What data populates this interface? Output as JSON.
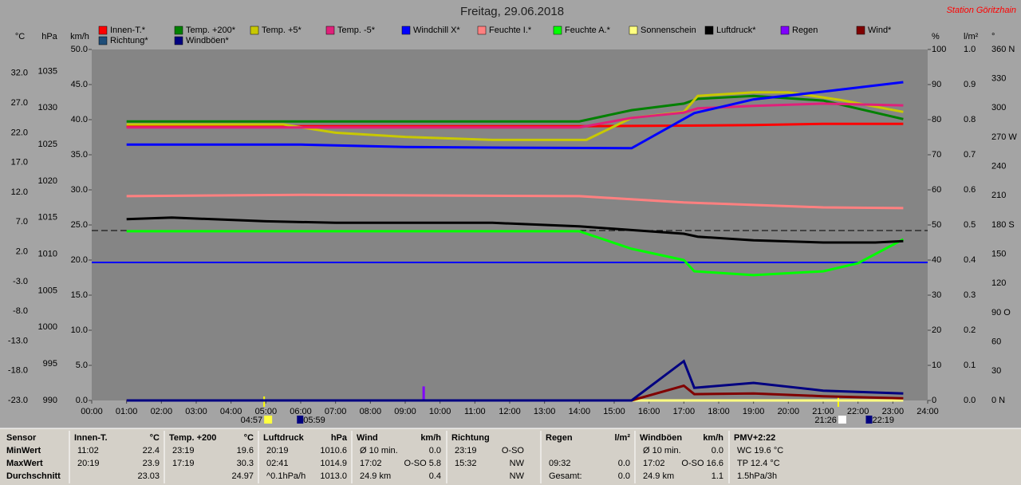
{
  "chart_data": {
    "type": "line",
    "title": "Freitag, 29.06.2018",
    "subtitle": "Station Göritzhain",
    "xlim": [
      0,
      24
    ],
    "xticks": [
      {
        "value": 0,
        "label": "00:00"
      },
      {
        "value": 1,
        "label": "01:00"
      },
      {
        "value": 2,
        "label": "02:00"
      },
      {
        "value": 3,
        "label": "03:00"
      },
      {
        "value": 4,
        "label": "04:00"
      },
      {
        "value": 5,
        "label": "05:00"
      },
      {
        "value": 6,
        "label": "06:00"
      },
      {
        "value": 7,
        "label": "07:00"
      },
      {
        "value": 8,
        "label": "08:00"
      },
      {
        "value": 9,
        "label": "09:00"
      },
      {
        "value": 10,
        "label": "10:00"
      },
      {
        "value": 11,
        "label": "11:00"
      },
      {
        "value": 12,
        "label": "12:00"
      },
      {
        "value": 13,
        "label": "13:00"
      },
      {
        "value": 14,
        "label": "14:00"
      },
      {
        "value": 15,
        "label": "15:00"
      },
      {
        "value": 16,
        "label": "16:00"
      },
      {
        "value": 17,
        "label": "17:00"
      },
      {
        "value": 18,
        "label": "18:00"
      },
      {
        "value": 19,
        "label": "19:00"
      },
      {
        "value": 20,
        "label": "20:00"
      },
      {
        "value": 21,
        "label": "21:00"
      },
      {
        "value": 22,
        "label": "22:00"
      },
      {
        "value": 23,
        "label": "23:00"
      },
      {
        "value": 24,
        "label": "24:00"
      }
    ],
    "annotations": [
      "04:57",
      "05:59",
      "21:26",
      "22:19"
    ],
    "axes": [
      {
        "unit": "°C",
        "side": "left",
        "color": "#c00000",
        "lim": [
          -23,
          36
        ],
        "ticks": [
          {
            "value": 32,
            "label": "32.0"
          },
          {
            "value": 27,
            "label": "27.0"
          },
          {
            "value": 22,
            "label": "22.0"
          },
          {
            "value": 17,
            "label": "17.0"
          },
          {
            "value": 12,
            "label": "12.0"
          },
          {
            "value": 7,
            "label": "7.0"
          },
          {
            "value": 2,
            "label": "2.0"
          },
          {
            "value": -3,
            "label": "-3.0"
          },
          {
            "value": -8,
            "label": "-8.0"
          },
          {
            "value": -13,
            "label": "-13.0"
          },
          {
            "value": -18,
            "label": "-18.0"
          },
          {
            "value": -23,
            "label": "-23.0"
          }
        ]
      },
      {
        "unit": "hPa",
        "side": "left",
        "color": "#000000",
        "lim": [
          990,
          1038
        ],
        "ticks": [
          1035,
          1030,
          1025,
          1020,
          1015,
          1010,
          1005,
          1000,
          995,
          990
        ]
      },
      {
        "unit": "km/h",
        "side": "left",
        "color": "#800000",
        "lim": [
          0,
          50
        ],
        "ticks": [
          {
            "value": 50,
            "label": "50.0"
          },
          {
            "value": 45,
            "label": "45.0"
          },
          {
            "value": 40,
            "label": "40.0"
          },
          {
            "value": 35,
            "label": "35.0"
          },
          {
            "value": 30,
            "label": "30.0"
          },
          {
            "value": 25,
            "label": "25.0"
          },
          {
            "value": 20,
            "label": "20.0"
          },
          {
            "value": 15,
            "label": "15.0"
          },
          {
            "value": 10,
            "label": "10.0"
          },
          {
            "value": 5,
            "label": "5.0"
          },
          {
            "value": 0,
            "label": "0.0"
          }
        ]
      },
      {
        "unit": "%",
        "side": "right",
        "color": "#e05070",
        "lim": [
          0,
          100
        ],
        "ticks": [
          100,
          90,
          80,
          70,
          60,
          50,
          40,
          30,
          20,
          10,
          0
        ]
      },
      {
        "unit": "l/m²",
        "side": "right",
        "color": "#8000ff",
        "lim": [
          0,
          1
        ],
        "ticks": [
          {
            "value": 1,
            "label": "1.0"
          },
          0.9,
          0.8,
          0.7,
          0.6,
          0.5,
          0.4,
          0.3,
          0.2,
          0.1,
          {
            "value": 0,
            "label": "0.0"
          }
        ]
      },
      {
        "unit": "°",
        "side": "right",
        "color": "#1f4e9a",
        "lim": [
          0,
          360
        ],
        "ticks": [
          {
            "value": 360,
            "label": "360 N"
          },
          330,
          300,
          {
            "value": 270,
            "label": "270 W"
          },
          240,
          210,
          {
            "value": 180,
            "label": "180 S"
          },
          150,
          120,
          {
            "value": 90,
            "label": "90 O"
          },
          60,
          30,
          {
            "value": 0,
            "label": "0 N"
          }
        ]
      }
    ],
    "series": [
      {
        "name": "Innen-T.*",
        "color": "#ff0000",
        "axis": "°C",
        "x": [
          1,
          14,
          17,
          19,
          21,
          23.3
        ],
        "values": [
          23.1,
          23.1,
          23.2,
          23.3,
          23.5,
          23.5
        ]
      },
      {
        "name": "Temp. +200*",
        "color": "#008000",
        "axis": "°C",
        "x": [
          1,
          14,
          15.5,
          17,
          17.4,
          19,
          21,
          23.3
        ],
        "values": [
          23.9,
          23.9,
          25.8,
          26.9,
          27.7,
          28.2,
          27.4,
          24.3
        ]
      },
      {
        "name": "Temp. +5*",
        "color": "#c8c800",
        "axis": "°C",
        "x": [
          1,
          5.5,
          7,
          9,
          11.5,
          14.2,
          15.5,
          17,
          17.4,
          19,
          20,
          21.5,
          23.3
        ],
        "values": [
          23.4,
          23.4,
          22.0,
          21.3,
          20.8,
          20.8,
          24.5,
          25.5,
          28.2,
          28.8,
          28.8,
          27.5,
          25.5
        ]
      },
      {
        "name": "Temp. -5*",
        "color": "#e0207a",
        "axis": "°C",
        "x": [
          1,
          14,
          15.5,
          17,
          17.4,
          19,
          21,
          23.3
        ],
        "values": [
          22.9,
          22.9,
          24.5,
          25.4,
          26.1,
          26.5,
          26.9,
          26.6
        ]
      },
      {
        "name": "Windchill X*",
        "color": "#0000ff",
        "axis": "°C",
        "x": [
          1,
          6,
          9,
          12,
          15.5,
          17.3,
          19,
          21,
          23.3
        ],
        "values": [
          20.0,
          20.0,
          19.6,
          19.5,
          19.4,
          25.3,
          27.6,
          28.9,
          30.5
        ]
      },
      {
        "name": "Feuchte I.*",
        "color": "#ff8080",
        "axis": "%",
        "x": [
          1,
          6,
          14,
          17,
          21,
          23.3
        ],
        "values": [
          58.2,
          58.6,
          58.2,
          56.4,
          55,
          54.8
        ]
      },
      {
        "name": "Feuchte A.*",
        "color": "#00ff00",
        "axis": "%",
        "x": [
          1,
          14,
          15.5,
          17,
          17.3,
          19,
          21,
          22,
          23.3
        ],
        "values": [
          48.2,
          48.2,
          43.2,
          40,
          36.8,
          35.7,
          36.8,
          39.1,
          45.9
        ]
      },
      {
        "name": "Sonnenschein",
        "color": "#ffff80",
        "axis": "%",
        "x": [
          1,
          23.3
        ],
        "values": [
          0,
          0
        ]
      },
      {
        "name": "Luftdruck*",
        "color": "#000000",
        "axis": "hPa",
        "x": [
          1,
          2.3,
          5,
          7,
          11.5,
          14,
          15.5,
          17,
          17.4,
          19,
          21,
          22.5,
          23.3
        ],
        "values": [
          1014.8,
          1015.0,
          1014.5,
          1014.3,
          1014.3,
          1013.8,
          1013.3,
          1012.8,
          1012.4,
          1011.9,
          1011.6,
          1011.6,
          1011.8
        ]
      },
      {
        "name": "Regen",
        "color": "#8000ff",
        "axis": "l/m²",
        "type": "bar",
        "x": [
          9.53
        ],
        "values": [
          0.04
        ]
      },
      {
        "name": "Wind*",
        "color": "#800000",
        "axis": "km/h",
        "x": [
          1,
          15.5,
          17,
          17.3,
          19,
          21,
          23.3
        ],
        "values": [
          0,
          0,
          2.1,
          0.9,
          1.0,
          0.6,
          0.3
        ]
      },
      {
        "name": "Richtung*",
        "color": "#1f4e79"
      },
      {
        "name": "Windböen*",
        "color": "#000080",
        "axis": "km/h",
        "x": [
          1,
          15.5,
          17,
          17.3,
          19,
          21,
          23.3
        ],
        "values": [
          0,
          0,
          5.6,
          1.8,
          2.5,
          1.4,
          1.0
        ]
      }
    ]
  },
  "table": {
    "labels": [
      "Sensor",
      "MinWert",
      "MaxWert",
      "Durchschnitt"
    ],
    "groups": [
      {
        "name": "Innen-T.",
        "unit": "°C",
        "rows": [
          {
            "time": "11:02",
            "value": "22.4"
          },
          {
            "time": "20:19",
            "value": "23.9"
          },
          {
            "value": "23.03"
          }
        ]
      },
      {
        "name": "Temp. +200",
        "unit": "°C",
        "rows": [
          {
            "time": "23:19",
            "value": "19.6"
          },
          {
            "time": "17:19",
            "value": "30.3"
          },
          {
            "value": "24.97"
          }
        ]
      },
      {
        "name": "Luftdruck",
        "unit": "hPa",
        "rows": [
          {
            "time": "20:19",
            "value": "1010.6"
          },
          {
            "time": "02:41",
            "value": "1014.9"
          },
          {
            "time": "^0.1hPa/h",
            "value": "1013.0"
          }
        ]
      },
      {
        "name": "Wind",
        "unit": "km/h",
        "rows": [
          {
            "time": "Ø 10 min.",
            "value": "0.0"
          },
          {
            "time": "17:02",
            "value": "O-SO 5.8"
          },
          {
            "time": "24.9 km",
            "value": "0.4"
          }
        ]
      },
      {
        "name": "Richtung",
        "rows": [
          {
            "time": "23:19",
            "value": "O-SO"
          },
          {
            "time": "15:32",
            "value": "NW"
          },
          {
            "value": "NW"
          }
        ]
      },
      {
        "name": "Regen",
        "unit": "l/m²",
        "rows": [
          null,
          {
            "time": "09:32",
            "value": "0.0"
          },
          {
            "time": "Gesamt:",
            "value": "0.0"
          }
        ]
      },
      {
        "name": "Windböen",
        "unit": "km/h",
        "rows": [
          {
            "time": "Ø 10 min.",
            "value": "0.0"
          },
          {
            "time": "17:02",
            "value": "O-SO 16.6"
          },
          {
            "time": "24.9 km",
            "value": "1.1"
          }
        ]
      },
      {
        "name": "PMV+2:22",
        "rows": [
          {
            "time": "WC 19.6 °C"
          },
          {
            "time": "TP 12.4 °C"
          },
          {
            "time": "1.5hPa/3h"
          }
        ]
      }
    ]
  }
}
